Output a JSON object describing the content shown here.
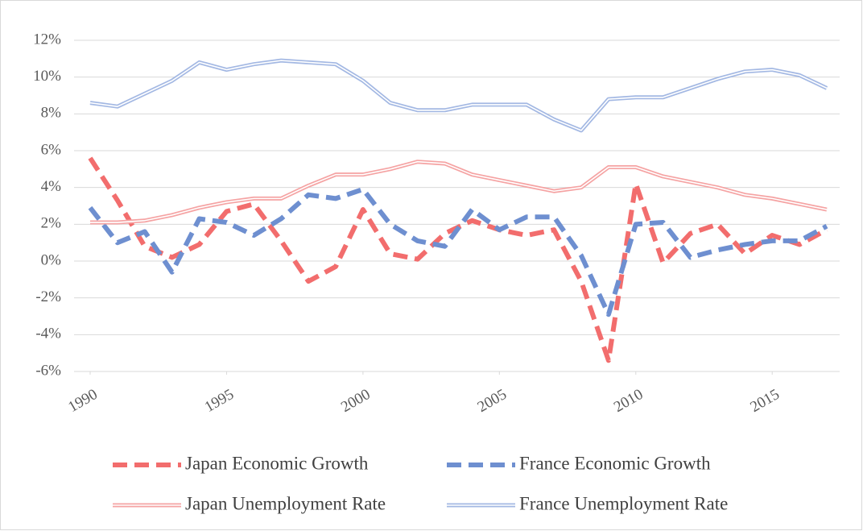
{
  "chart_data": {
    "type": "line",
    "x": [
      1990,
      1991,
      1992,
      1993,
      1994,
      1995,
      1996,
      1997,
      1998,
      1999,
      2000,
      2001,
      2002,
      2003,
      2004,
      2005,
      2006,
      2007,
      2008,
      2009,
      2010,
      2011,
      2012,
      2013,
      2014,
      2015,
      2016,
      2017
    ],
    "series": [
      {
        "name": "Japan Economic Growth",
        "color": "#f26d6d",
        "style": "dashed",
        "values": [
          5.6,
          3.3,
          0.8,
          0.2,
          0.9,
          2.7,
          3.1,
          1.1,
          -1.1,
          -0.3,
          2.8,
          0.4,
          0.1,
          1.5,
          2.2,
          1.7,
          1.4,
          1.7,
          -1.1,
          -5.4,
          4.2,
          -0.1,
          1.5,
          2.0,
          0.4,
          1.4,
          0.9,
          1.7
        ]
      },
      {
        "name": "France Economic Growth",
        "color": "#6e8fd0",
        "style": "dashed",
        "values": [
          2.9,
          1.0,
          1.6,
          -0.6,
          2.3,
          2.1,
          1.4,
          2.3,
          3.6,
          3.4,
          3.9,
          2.0,
          1.1,
          0.8,
          2.8,
          1.7,
          2.4,
          2.4,
          0.3,
          -2.9,
          2.0,
          2.1,
          0.2,
          0.6,
          0.9,
          1.1,
          1.1,
          1.9
        ]
      },
      {
        "name": "Japan Unemployment Rate",
        "color": "#f5a3a3",
        "style": "double",
        "values": [
          2.1,
          2.1,
          2.2,
          2.5,
          2.9,
          3.2,
          3.4,
          3.4,
          4.1,
          4.7,
          4.7,
          5.0,
          5.4,
          5.3,
          4.7,
          4.4,
          4.1,
          3.8,
          4.0,
          5.1,
          5.1,
          4.6,
          4.3,
          4.0,
          3.6,
          3.4,
          3.1,
          2.8
        ]
      },
      {
        "name": "France Unemployment Rate",
        "color": "#a3b8e3",
        "style": "double",
        "values": [
          8.6,
          8.4,
          9.1,
          9.8,
          10.8,
          10.4,
          10.7,
          10.9,
          10.8,
          10.7,
          9.8,
          8.6,
          8.2,
          8.2,
          8.5,
          8.5,
          8.5,
          7.7,
          7.1,
          8.8,
          8.9,
          8.9,
          9.4,
          9.9,
          10.3,
          10.4,
          10.1,
          9.4
        ]
      }
    ],
    "xlim": [
      1990,
      2017
    ],
    "xticks": [
      1990,
      1995,
      2000,
      2005,
      2010,
      2015
    ],
    "ylim": [
      -6,
      12
    ],
    "yticks": [
      {
        "value": -6,
        "label": "-6%"
      },
      {
        "value": -4,
        "label": "-4%"
      },
      {
        "value": -2,
        "label": "-2%"
      },
      {
        "value": 0,
        "label": "0%"
      },
      {
        "value": 2,
        "label": "2%"
      },
      {
        "value": 4,
        "label": "4%"
      },
      {
        "value": 6,
        "label": "6%"
      },
      {
        "value": 8,
        "label": "8%"
      },
      {
        "value": 10,
        "label": "10%"
      },
      {
        "value": 12,
        "label": "12%"
      }
    ],
    "grid": true,
    "legend": "bottom"
  }
}
